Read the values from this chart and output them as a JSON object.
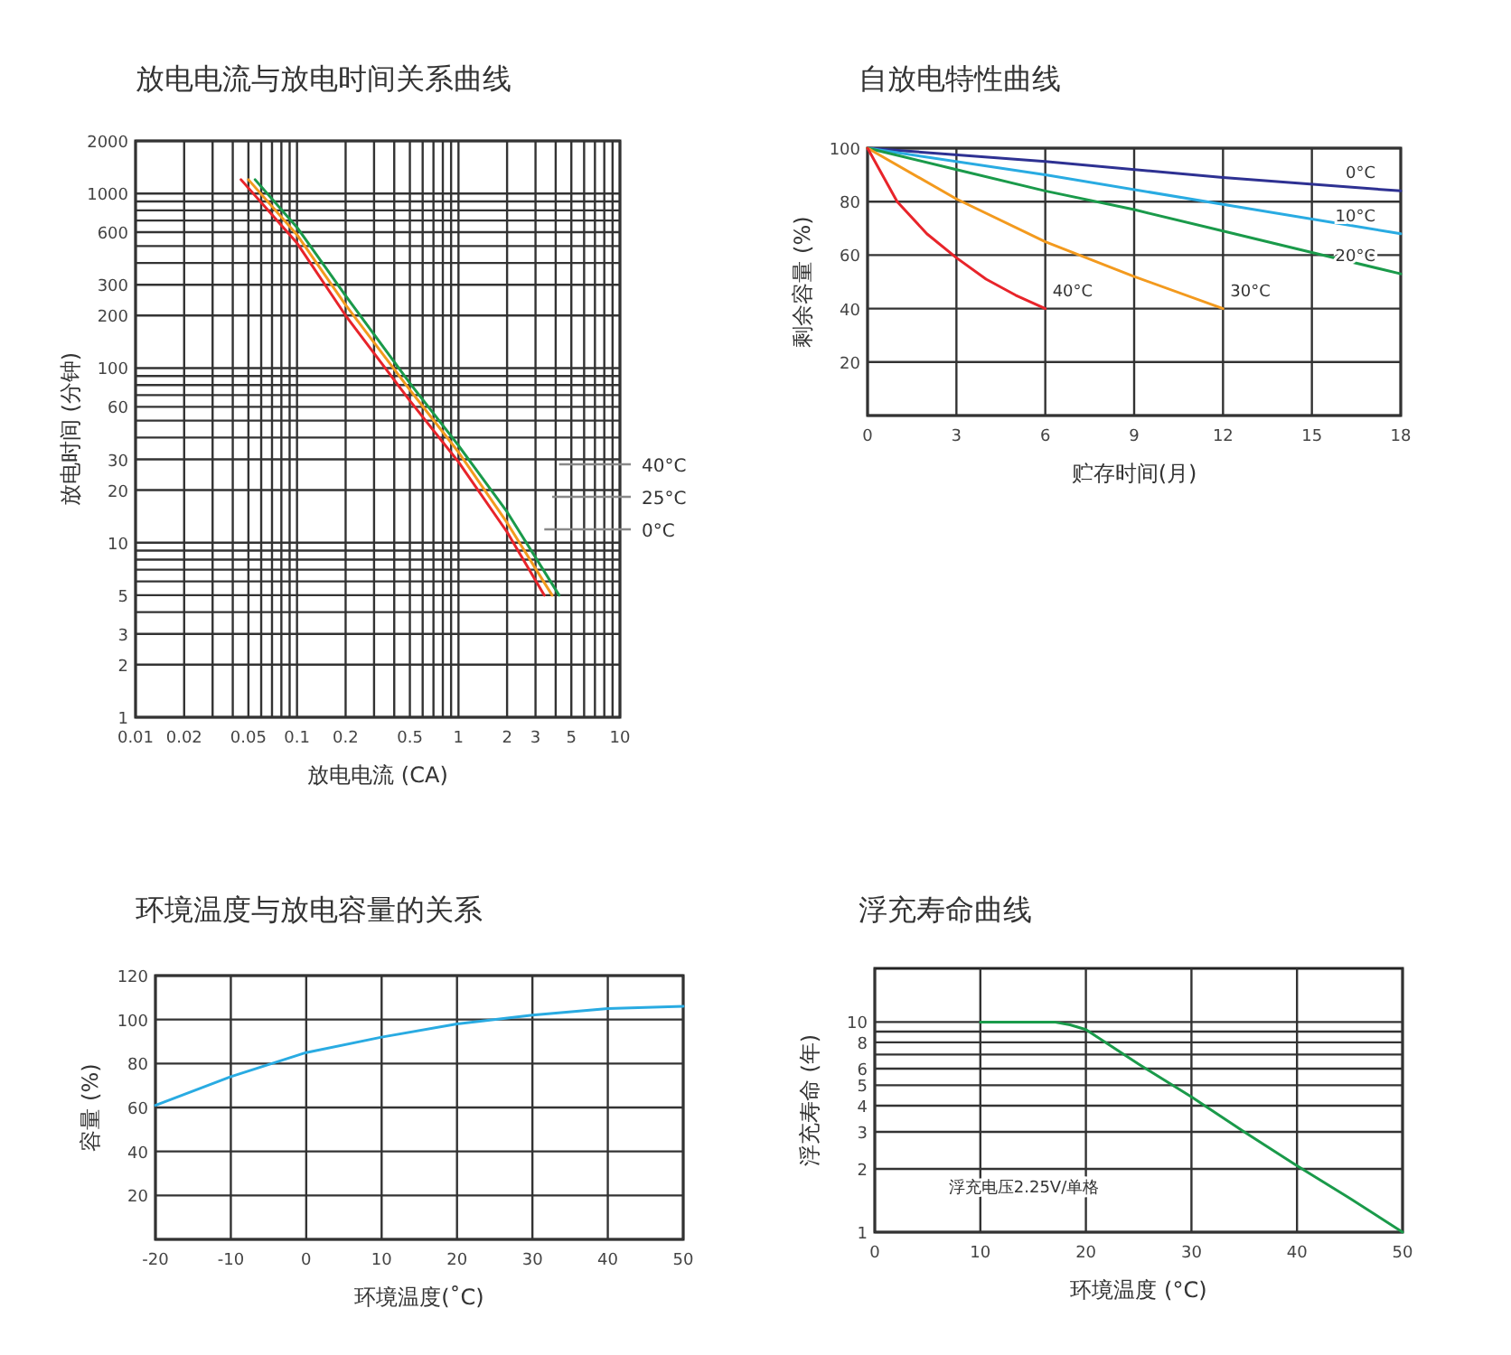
{
  "chart_data": [
    {
      "type": "line",
      "title": "放电电流与放电时间关系曲线",
      "xlabel": "放电电流 (CA)",
      "ylabel": "放电时间 (分钟)",
      "log": "xy",
      "grid": true,
      "xlim": [
        0.01,
        10
      ],
      "ylim": [
        1,
        2000
      ],
      "xticks": [
        0.01,
        0.02,
        {
          "value": 0.03,
          "label": null
        },
        {
          "value": 0.04,
          "label": null
        },
        0.05,
        {
          "value": 0.06,
          "label": null
        },
        {
          "value": 0.07,
          "label": null
        },
        {
          "value": 0.08,
          "label": null
        },
        {
          "value": 0.09,
          "label": null
        },
        0.1,
        0.2,
        {
          "value": 0.3,
          "label": null
        },
        {
          "value": 0.4,
          "label": null
        },
        0.5,
        {
          "value": 0.6,
          "label": null
        },
        {
          "value": 0.7,
          "label": null
        },
        {
          "value": 0.8,
          "label": null
        },
        {
          "value": 0.9,
          "label": null
        },
        1,
        2,
        3,
        {
          "value": 4,
          "label": null
        },
        5,
        {
          "value": 6,
          "label": null
        },
        {
          "value": 7,
          "label": null
        },
        {
          "value": 8,
          "label": null
        },
        {
          "value": 9,
          "label": null
        },
        10
      ],
      "yticks": [
        1,
        2,
        3,
        {
          "value": 4,
          "label": null
        },
        5,
        {
          "value": 6,
          "label": null
        },
        {
          "value": 7,
          "label": null
        },
        {
          "value": 8,
          "label": null
        },
        {
          "value": 9,
          "label": null
        },
        10,
        20,
        30,
        {
          "value": 40,
          "label": null
        },
        {
          "value": 50,
          "label": null
        },
        60,
        {
          "value": 70,
          "label": null
        },
        {
          "value": 80,
          "label": null
        },
        {
          "value": 90,
          "label": null
        },
        100,
        200,
        300,
        {
          "value": 400,
          "label": null
        },
        {
          "value": 500,
          "label": null
        },
        600,
        {
          "value": 700,
          "label": null
        },
        {
          "value": 800,
          "label": null
        },
        {
          "value": 900,
          "label": null
        },
        1000,
        2000
      ],
      "series": [
        {
          "name": "0°C",
          "color": "#e8242a",
          "x": [
            0.045,
            0.1,
            0.2,
            0.5,
            1,
            2,
            3.4
          ],
          "values": [
            1200,
            520,
            200,
            65,
            29,
            11.5,
            5
          ]
        },
        {
          "name": "25°C",
          "color": "#f39a1e",
          "x": [
            0.05,
            0.1,
            0.2,
            0.5,
            1,
            2,
            3.8
          ],
          "values": [
            1200,
            580,
            230,
            75,
            33,
            13,
            5
          ]
        },
        {
          "name": "40°C",
          "color": "#1a9a4a",
          "x": [
            0.055,
            0.1,
            0.2,
            0.5,
            1,
            2,
            4.2
          ],
          "values": [
            1200,
            640,
            260,
            82,
            36,
            15,
            5
          ]
        }
      ]
    },
    {
      "type": "line",
      "title": "自放电特性曲线",
      "xlabel": "贮存时间(月)",
      "ylabel": "剩余容量 (%)",
      "grid": true,
      "xlim": [
        0,
        18
      ],
      "ylim": [
        0,
        100
      ],
      "xticks": [
        0,
        3,
        6,
        9,
        12,
        15,
        18
      ],
      "yticks": [
        {
          "value": 0,
          "label": null
        },
        20,
        40,
        60,
        80,
        100
      ],
      "series": [
        {
          "name": "0°C",
          "color": "#2e3192",
          "x": [
            0,
            6,
            12,
            18
          ],
          "values": [
            100,
            95,
            89,
            84
          ]
        },
        {
          "name": "10°C",
          "color": "#29abe2",
          "x": [
            0,
            6,
            12,
            18
          ],
          "values": [
            100,
            90,
            79,
            68
          ]
        },
        {
          "name": "20°C",
          "color": "#1a9a4a",
          "x": [
            0,
            3,
            6,
            9,
            12,
            15,
            18
          ],
          "values": [
            100,
            92,
            84,
            77,
            69,
            61,
            53
          ]
        },
        {
          "name": "30°C",
          "color": "#f39a1e",
          "x": [
            0,
            3,
            6,
            9,
            12
          ],
          "values": [
            100,
            81,
            65,
            52,
            40
          ]
        },
        {
          "name": "40°C",
          "color": "#e8242a",
          "x": [
            0,
            1,
            2,
            3,
            4,
            5,
            6
          ],
          "values": [
            100,
            80,
            68,
            59,
            51,
            45,
            40
          ]
        }
      ]
    },
    {
      "type": "line",
      "title": "环境温度与放电容量的关系",
      "xlabel": "环境温度(˚C)",
      "ylabel": "容量 (%)",
      "grid": true,
      "xlim": [
        -20,
        50
      ],
      "ylim": [
        0,
        120
      ],
      "xticks": [
        -20,
        -10,
        0,
        10,
        20,
        30,
        40,
        50
      ],
      "yticks": [
        {
          "value": 0,
          "label": null
        },
        20,
        40,
        60,
        80,
        100,
        120
      ],
      "series": [
        {
          "color": "#29abe2",
          "x": [
            -20,
            -10,
            0,
            10,
            20,
            30,
            40,
            50
          ],
          "values": [
            61,
            74,
            85,
            92,
            98,
            102,
            105,
            106
          ]
        }
      ]
    },
    {
      "type": "line",
      "title": "浮充寿命曲线",
      "xlabel": "环境温度 (°C)",
      "ylabel": "浮充寿命 (年)",
      "log": "y",
      "grid": true,
      "xlim": [
        0,
        50
      ],
      "ylim": [
        1,
        18
      ],
      "xticks": [
        0,
        10,
        20,
        30,
        40,
        50
      ],
      "yticks": [
        1,
        2,
        3,
        4,
        5,
        6,
        {
          "value": 7,
          "label": null
        },
        8,
        {
          "value": 9,
          "label": null
        },
        10
      ],
      "annotations": [
        "浮充电压2.25V/单格"
      ],
      "series": [
        {
          "color": "#1a9a4a",
          "x": [
            10,
            17,
            18.5,
            20,
            25,
            30,
            35,
            40,
            45,
            50
          ],
          "values": [
            10,
            10,
            9.7,
            9.2,
            6.3,
            4.4,
            3,
            2.07,
            1.45,
            1
          ]
        }
      ]
    }
  ]
}
